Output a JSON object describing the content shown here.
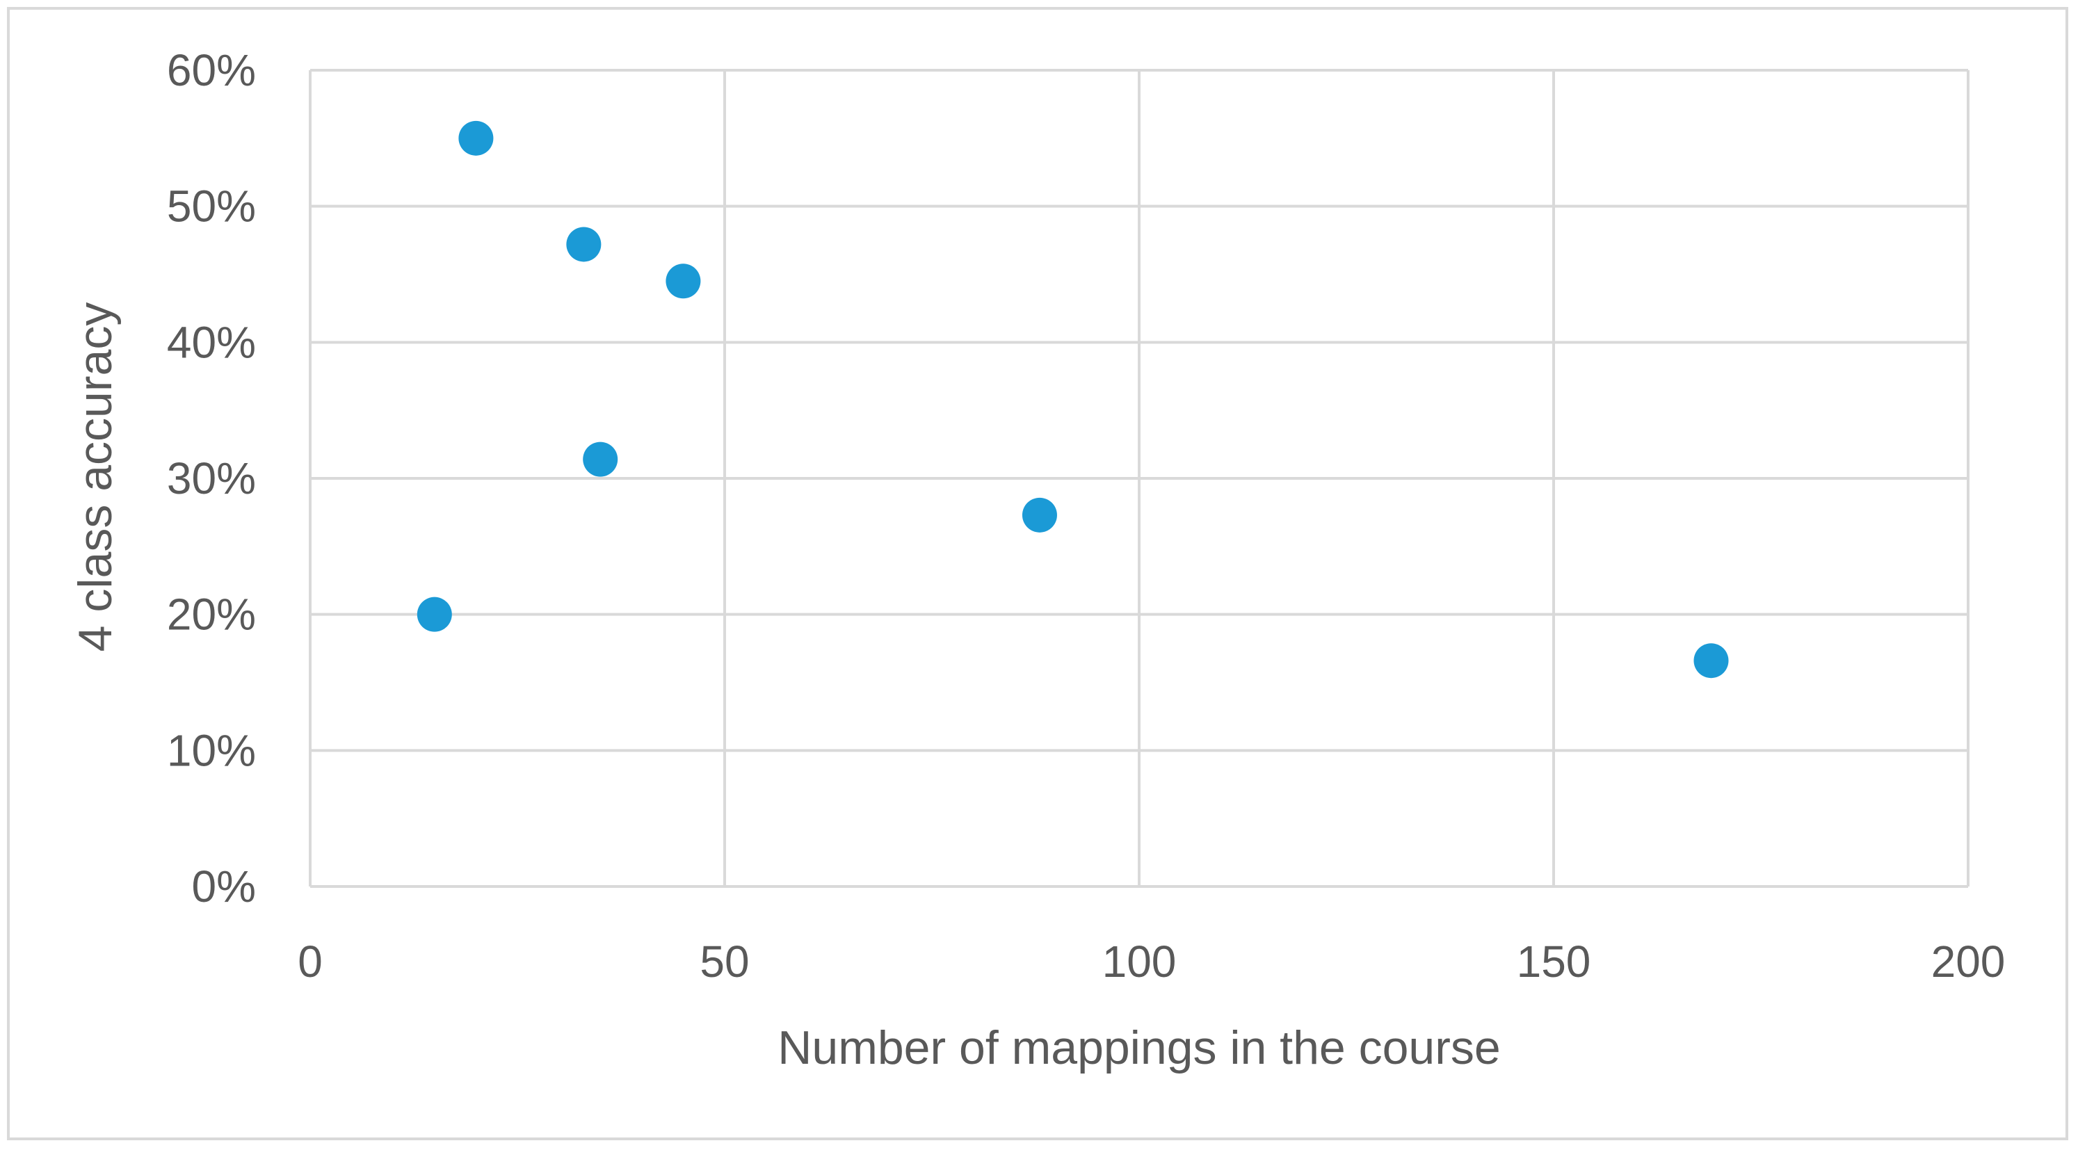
{
  "chart_data": {
    "type": "scatter",
    "title": "",
    "xlabel": "Number of mappings in the course",
    "ylabel": "4 class accuracy",
    "xlim": [
      0,
      200
    ],
    "ylim": [
      0,
      0.6
    ],
    "x_ticks": [
      0,
      50,
      100,
      150,
      200
    ],
    "y_ticks": [
      0,
      0.1,
      0.2,
      0.3,
      0.4,
      0.5,
      0.6
    ],
    "x_tick_labels": [
      "0",
      "50",
      "100",
      "150",
      "200"
    ],
    "y_tick_labels": [
      "0%",
      "10%",
      "20%",
      "30%",
      "40%",
      "50%",
      "60%"
    ],
    "grid": true,
    "legend": "none",
    "marker_color": "#1b9ad6",
    "series": [
      {
        "x": [
          20,
          33,
          45,
          35,
          88,
          15,
          169
        ],
        "y": [
          0.55,
          0.472,
          0.445,
          0.314,
          0.273,
          0.2,
          0.166
        ]
      }
    ]
  }
}
